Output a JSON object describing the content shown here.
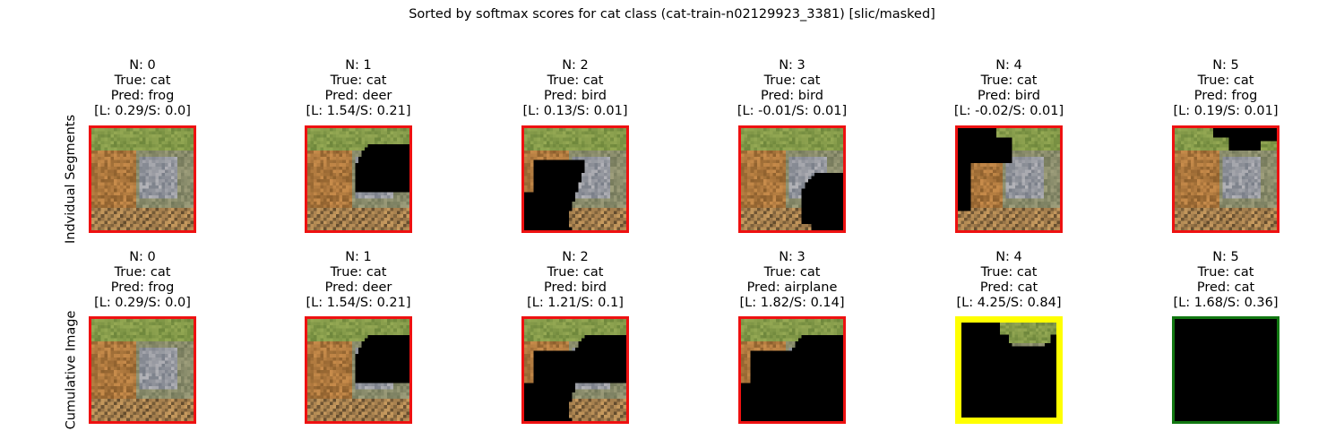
{
  "chart_data": {
    "type": "image-grid",
    "title": "Sorted by softmax scores for cat class (cat-train-n02129923_3381) [slic/masked]",
    "row_labels": [
      "Indvidual Segments",
      "Cumulative Image"
    ],
    "rows": [
      {
        "name": "Indvidual Segments",
        "panels": [
          {
            "n": "N: 0",
            "true_label": "True: cat",
            "pred": "Pred: frog",
            "scores": "[L: 0.29/S: 0.0]",
            "border": "#ee1111",
            "mask": "none"
          },
          {
            "n": "N: 1",
            "true_label": "True: cat",
            "pred": "Pred: deer",
            "scores": "[L: 1.54/S: 0.21]",
            "border": "#ee1111",
            "mask": "seg1"
          },
          {
            "n": "N: 2",
            "true_label": "True: cat",
            "pred": "Pred: bird",
            "scores": "[L: 0.13/S: 0.01]",
            "border": "#ee1111",
            "mask": "seg2"
          },
          {
            "n": "N: 3",
            "true_label": "True: cat",
            "pred": "Pred: bird",
            "scores": "[L: -0.01/S: 0.01]",
            "border": "#ee1111",
            "mask": "seg3"
          },
          {
            "n": "N: 4",
            "true_label": "True: cat",
            "pred": "Pred: bird",
            "scores": "[L: -0.02/S: 0.01]",
            "border": "#ee1111",
            "mask": "seg4"
          },
          {
            "n": "N: 5",
            "true_label": "True: cat",
            "pred": "Pred: frog",
            "scores": "[L: 0.19/S: 0.01]",
            "border": "#ee1111",
            "mask": "seg5"
          }
        ]
      },
      {
        "name": "Cumulative Image",
        "panels": [
          {
            "n": "N: 0",
            "true_label": "True: cat",
            "pred": "Pred: frog",
            "scores": "[L: 0.29/S: 0.0]",
            "border": "#ee1111",
            "mask": "none"
          },
          {
            "n": "N: 1",
            "true_label": "True: cat",
            "pred": "Pred: deer",
            "scores": "[L: 1.54/S: 0.21]",
            "border": "#ee1111",
            "mask": "cum1"
          },
          {
            "n": "N: 2",
            "true_label": "True: cat",
            "pred": "Pred: bird",
            "scores": "[L: 1.21/S: 0.1]",
            "border": "#ee1111",
            "mask": "cum2"
          },
          {
            "n": "N: 3",
            "true_label": "True: cat",
            "pred": "Pred: airplane",
            "scores": "[L: 1.82/S: 0.14]",
            "border": "#ee1111",
            "mask": "cum3"
          },
          {
            "n": "N: 4",
            "true_label": "True: cat",
            "pred": "Pred: cat",
            "scores": "[L: 4.25/S: 0.84]",
            "border": "#ffff00",
            "mask": "cum4"
          },
          {
            "n": "N: 5",
            "true_label": "True: cat",
            "pred": "Pred: cat",
            "scores": "[L: 1.68/S: 0.36]",
            "border": "#117711",
            "mask": "all"
          }
        ]
      }
    ],
    "border_colors": {
      "default": "#ee1111",
      "highlight": "#ffff00",
      "final": "#117711"
    },
    "grid": false,
    "axes": "off"
  }
}
